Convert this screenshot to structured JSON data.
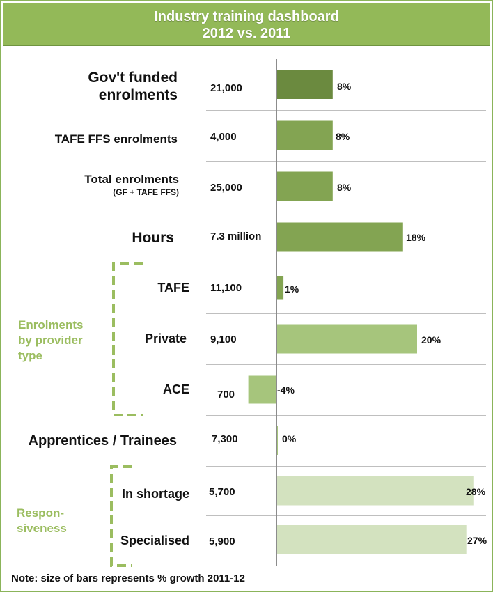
{
  "title_line1": "Industry training dashboard",
  "title_line2": "2012 vs. 2011",
  "group_labels": {
    "enrolments_by_provider": [
      "Enrolments",
      "by provider",
      "type"
    ],
    "responsiveness": [
      "Respon-",
      "siveness"
    ]
  },
  "note": "Note: size of bars represents % growth 2011-12",
  "colors": {
    "header": "#93b958",
    "dark_bar": "#6b8a3f",
    "mid_bar": "#83a452",
    "light_bar": "#a6c57c",
    "pale_bar": "#d3e2bf",
    "group_label": "#9bbd60"
  },
  "chart_data": {
    "type": "bar",
    "orientation": "horizontal",
    "title": "Industry training dashboard 2012 vs. 2011",
    "rows": [
      {
        "label": "Gov't funded enrolments",
        "value_text": "21,000",
        "growth": 8,
        "growth_label": "8%"
      },
      {
        "label": "TAFE FFS enrolments",
        "value_text": "4,000",
        "growth": 8,
        "growth_label": "8%"
      },
      {
        "label": "Total enrolments",
        "sublabel": "(GF + TAFE FFS)",
        "value_text": "25,000",
        "growth": 8,
        "growth_label": "8%"
      },
      {
        "label": "Hours",
        "value_text": "7.3 million",
        "growth": 18,
        "growth_label": "18%"
      },
      {
        "label": "TAFE",
        "value_text": "11,100",
        "growth": 1,
        "growth_label": "1%"
      },
      {
        "label": "Private",
        "value_text": "9,100",
        "growth": 20,
        "growth_label": "20%"
      },
      {
        "label": "ACE",
        "value_text": "700",
        "growth": -4,
        "growth_label": "-4%"
      },
      {
        "label": "Apprentices / Trainees",
        "value_text": "7,300",
        "growth": 0,
        "growth_label": "0%"
      },
      {
        "label": "In shortage",
        "value_text": "5,700",
        "growth": 28,
        "growth_label": "28%"
      },
      {
        "label": "Specialised",
        "value_text": "5,900",
        "growth": 27,
        "growth_label": "27%"
      }
    ]
  }
}
